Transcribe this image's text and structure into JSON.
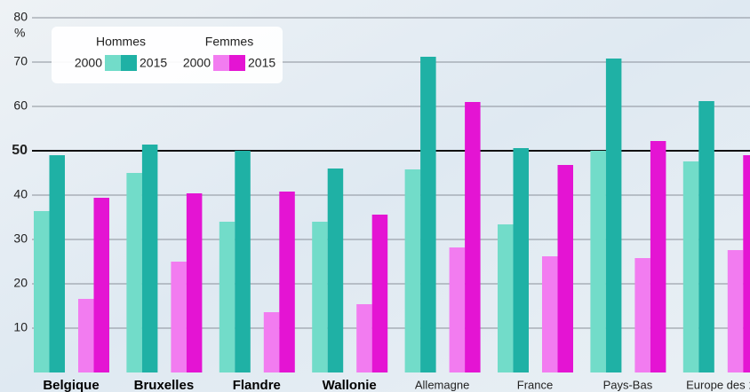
{
  "chart_data": {
    "type": "bar",
    "y_unit": "%",
    "categories": [
      "Belgique",
      "Bruxelles",
      "Flandre",
      "Wallonie",
      "Allemagne",
      "France",
      "Pays-Bas",
      "Europe des 1"
    ],
    "series": [
      {
        "group": "Hommes",
        "name": "2000",
        "color": "#72dcc9",
        "values": [
          36.4,
          45,
          34,
          34,
          45.8,
          33.4,
          50,
          47.6
        ]
      },
      {
        "group": "Hommes",
        "name": "2015",
        "color": "#1fb1a5",
        "values": [
          49,
          51.4,
          50,
          46,
          71.2,
          50.6,
          70.8,
          61.2
        ]
      },
      {
        "group": "Femmes",
        "name": "2000",
        "color": "#f27cf0",
        "values": [
          16.6,
          25,
          13.6,
          15.4,
          28.2,
          26.2,
          25.8,
          27.6
        ]
      },
      {
        "group": "Femmes",
        "name": "2015",
        "color": "#e414d3",
        "values": [
          39.4,
          40.4,
          40.8,
          35.6,
          61,
          46.8,
          52.2,
          49
        ]
      }
    ],
    "ylim": [
      0,
      80
    ],
    "yticks": [
      10,
      20,
      30,
      40,
      50,
      60,
      70,
      80
    ],
    "reference_line": 50,
    "grid": true
  }
}
